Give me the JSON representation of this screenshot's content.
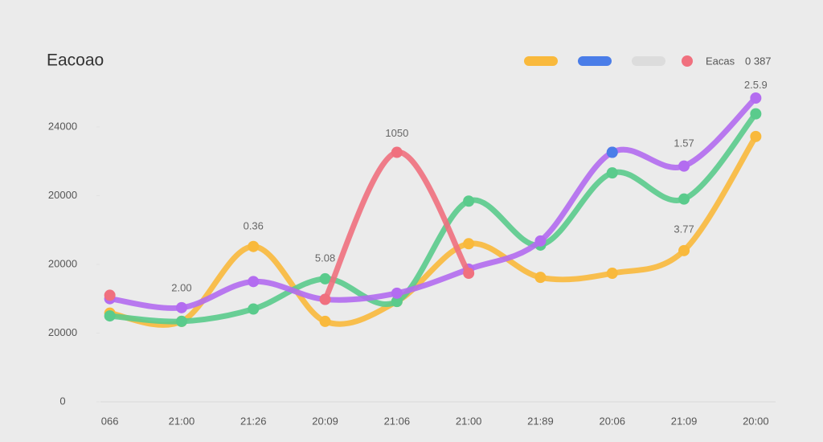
{
  "chart_data": {
    "type": "line",
    "title": "Eacoao",
    "categories": [
      "066",
      "21:00",
      "21:26",
      "20:09",
      "21:06",
      "21:00",
      "21:89",
      "20:06",
      "21:09",
      "20:00"
    ],
    "series": [
      {
        "color": "#f9b93c",
        "values": [
          1.29,
          1.17,
          2.26,
          1.17,
          1.46,
          2.3,
          1.81,
          1.87,
          2.2,
          3.86
        ]
      },
      {
        "color": "#5acb8c",
        "values": [
          1.25,
          1.17,
          1.35,
          1.79,
          1.46,
          2.92,
          2.28,
          3.33,
          2.95,
          4.19
        ]
      },
      {
        "color": "#b36cf0",
        "values": [
          1.5,
          1.37,
          1.75,
          1.49,
          1.58,
          1.93,
          2.34,
          3.63,
          3.43,
          4.42
        ]
      },
      {
        "color": "#f0707e",
        "values": [
          1.55,
          null,
          null,
          1.49,
          3.63,
          1.87,
          null,
          null,
          null,
          null
        ]
      },
      {
        "color": "#4a7de8",
        "values": [
          null,
          null,
          null,
          null,
          null,
          null,
          null,
          3.63,
          null,
          null
        ]
      }
    ],
    "legend": [
      {
        "color": "#f9b93c"
      },
      {
        "color": "#4a7de8"
      },
      {
        "color": "#dcdcdc"
      },
      {
        "color": "#f0707e"
      }
    ],
    "legend_text": [
      "Eacas",
      "0 387"
    ],
    "annotations": [
      {
        "text": "2.00",
        "x": "21:00",
        "y": 1.65
      },
      {
        "text": "0.36",
        "x": "21:26",
        "y": 2.55
      },
      {
        "text": "5.08",
        "x": "20:09",
        "y": 2.08
      },
      {
        "text": "1050",
        "x": "21:06",
        "y": 3.9
      },
      {
        "text": "1.57",
        "x": "21:09",
        "y": 3.75
      },
      {
        "text": "3.77",
        "x": "21:09",
        "y": 2.5
      },
      {
        "text": "2.5.9",
        "x": "20:00",
        "y": 4.6
      }
    ],
    "ylim": [
      0,
      4.7
    ],
    "yticks": [
      {
        "value": 0,
        "label": "0"
      },
      {
        "value": 1,
        "label": "20000"
      },
      {
        "value": 2,
        "label": "20000"
      },
      {
        "value": 3,
        "label": "20000"
      },
      {
        "value": 4,
        "label": "24000"
      }
    ],
    "grid": false
  }
}
